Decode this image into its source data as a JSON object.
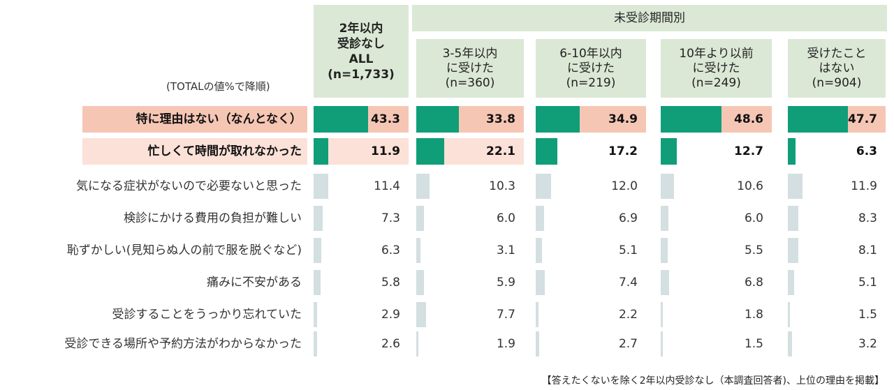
{
  "chart_data": {
    "type": "table",
    "title": "",
    "sort_note": "(TOTALの値%で降順)",
    "group_header": "未受診期間別",
    "columns": [
      {
        "label": "2年以内\n受診なし\nALL\n(n=1,733)"
      },
      {
        "label": "3-5年以内\nに受けた\n(n=360)"
      },
      {
        "label": "6-10年以内\nに受けた\n(n=219)"
      },
      {
        "label": "10年より以前\nに受けた\n(n=249)"
      },
      {
        "label": "受けたこと\nはない\n(n=904)"
      }
    ],
    "rows": [
      {
        "label": "特に理由はない（なんとなく）",
        "values": [
          "43.3",
          "33.8",
          "34.9",
          "48.6",
          "47.7"
        ],
        "highlight": 1
      },
      {
        "label": "忙しくて時間が取れなかった",
        "values": [
          "11.9",
          "22.1",
          "17.2",
          "12.7",
          "6.3"
        ],
        "highlight": 2
      },
      {
        "label": "気になる症状がないので必要ないと思った",
        "values": [
          "11.4",
          "10.3",
          "12.0",
          "10.6",
          "11.9"
        ],
        "highlight": 0
      },
      {
        "label": "検診にかける費用の負担が難しい",
        "values": [
          "7.3",
          "6.0",
          "6.9",
          "6.0",
          "8.3"
        ],
        "highlight": 0
      },
      {
        "label": "恥ずかしい(見知らぬ人の前で服を脱ぐなど)",
        "values": [
          "6.3",
          "3.1",
          "5.1",
          "5.5",
          "8.1"
        ],
        "highlight": 0
      },
      {
        "label": "痛みに不安がある",
        "values": [
          "5.8",
          "5.9",
          "7.4",
          "6.8",
          "5.1"
        ],
        "highlight": 0
      },
      {
        "label": "受診することをうっかり忘れていた",
        "values": [
          "2.9",
          "7.7",
          "2.2",
          "1.8",
          "1.5"
        ],
        "highlight": 0
      },
      {
        "label": "受診できる場所や予約方法がわからなかった",
        "values": [
          "2.6",
          "1.9",
          "2.7",
          "1.5",
          "3.2"
        ],
        "highlight": 0
      }
    ],
    "colors": {
      "header_bg": "#dbe8d5",
      "bar_top": "#0f9e78",
      "bar_other": "#d3dfe0",
      "row1_bg": "#f6c6b4",
      "row2_bg": "#fbe1d8"
    },
    "value_scale_max": 100
  },
  "footer": "【答えたくないを除く2年以内受診なし（本調査回答者)、上位の理由を掲載】"
}
